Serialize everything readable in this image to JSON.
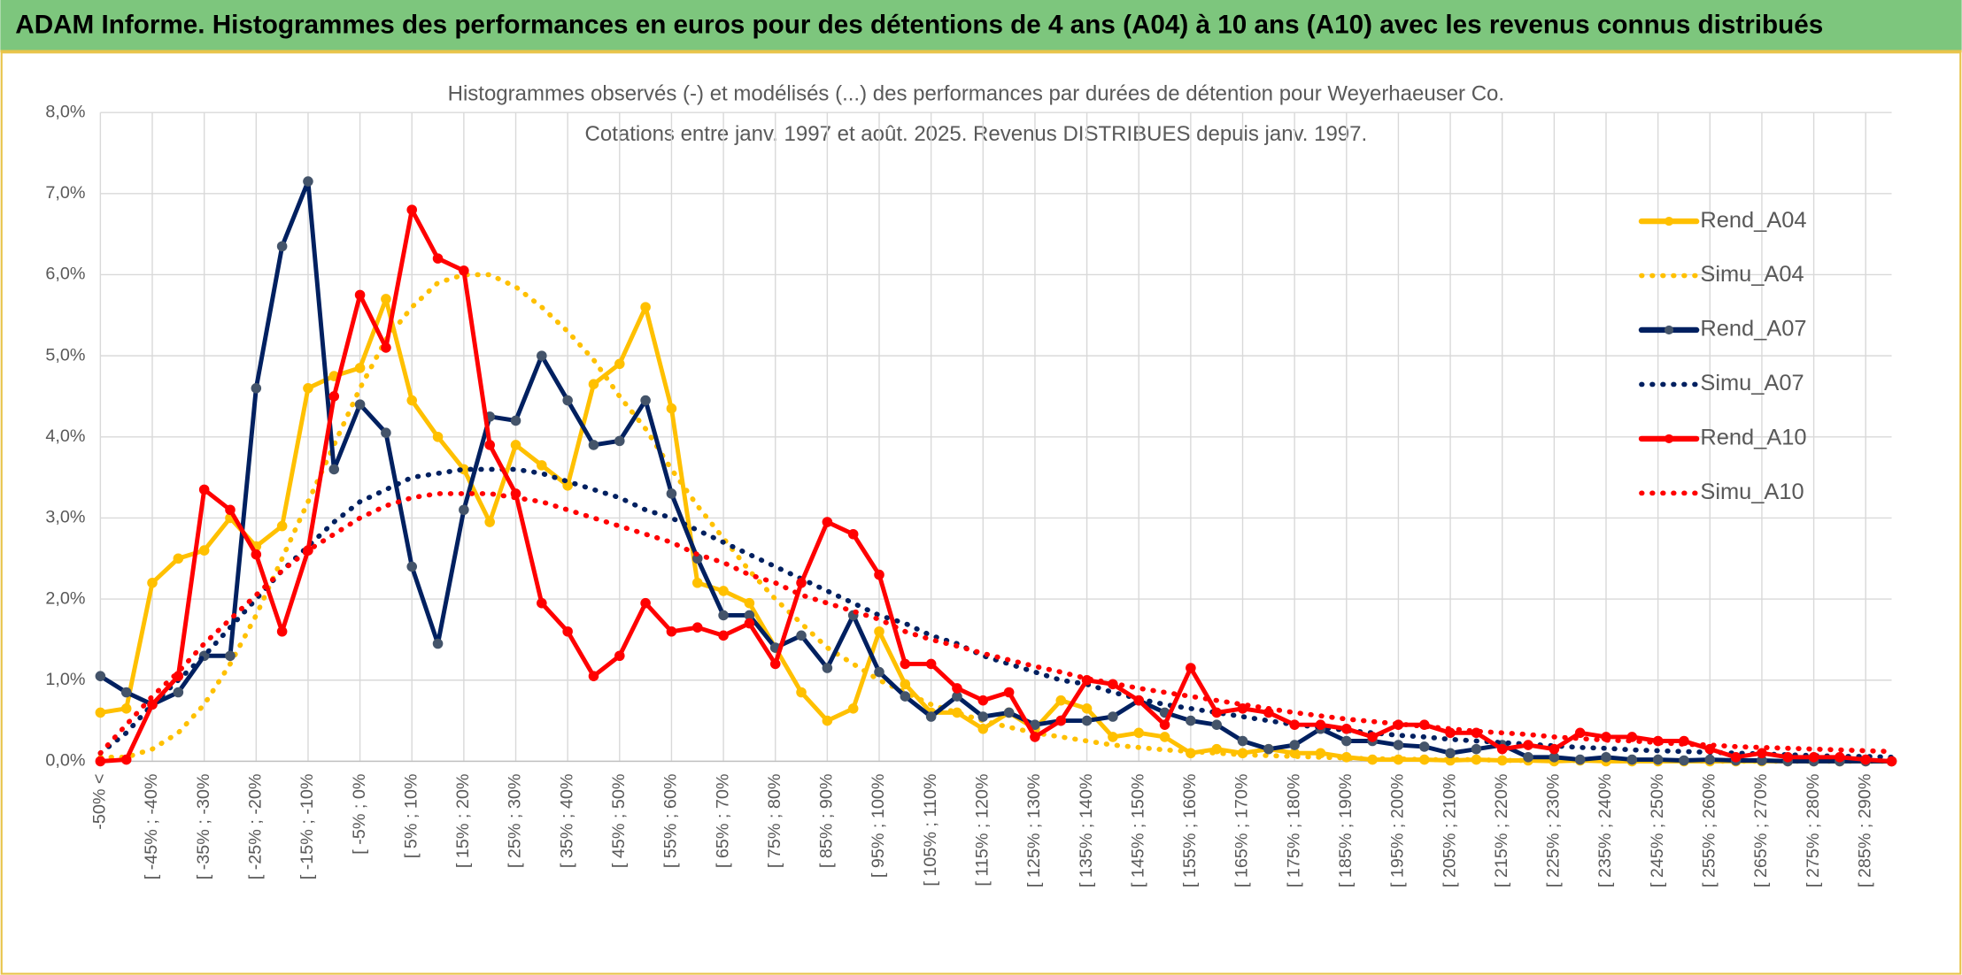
{
  "header": {
    "title": "ADAM Informe. Histogrammes des performances en euros pour des détentions de 4 ans (A04) à 10 ans (A10) avec les revenus connus distribués"
  },
  "chart_data": {
    "type": "line",
    "title": "Histogrammes observés (-) et modélisés (...) des performances par durées de détention pour Weyerhaeuser Co.",
    "subtitle": "Cotations entre janv. 1997 et août. 2025. Revenus DISTRIBUES depuis janv. 1997.",
    "categories": [
      "-50% <",
      null,
      "[ -45% ; -40%",
      null,
      "[ -35% ; -30%",
      null,
      "[ -25% ; -20%",
      null,
      "[ -15% ; -10%",
      null,
      "[ -5% ; 0%",
      null,
      "[ 5% ; 10%",
      null,
      "[ 15% ; 20%",
      null,
      "[ 25% ; 30%",
      null,
      "[ 35% ; 40%",
      null,
      "[ 45% ; 50%",
      null,
      "[ 55% ; 60%",
      null,
      "[ 65% ; 70%",
      null,
      "[ 75% ; 80%",
      null,
      "[ 85% ; 90%",
      null,
      "[ 95% ; 100%",
      null,
      "[ 105% ; 110%",
      null,
      "[ 115% ; 120%",
      null,
      "[ 125% ; 130%",
      null,
      "[ 135% ; 140%",
      null,
      "[ 145% ; 150%",
      null,
      "[ 155% ; 160%",
      null,
      "[ 165% ; 170%",
      null,
      "[ 175% ; 180%",
      null,
      "[ 185% ; 190%",
      null,
      "[ 195% ; 200%",
      null,
      "[ 205% ; 210%",
      null,
      "[ 215% ; 220%",
      null,
      "[ 225% ; 230%",
      null,
      "[ 235% ; 240%",
      null,
      "[ 245% ; 250%",
      null,
      "[ 255% ; 260%",
      null,
      "[ 265% ; 270%",
      null,
      "[ 275% ; 280%",
      null,
      "[ 285% ; 290%",
      null
    ],
    "ylim": [
      0,
      8
    ],
    "yticks": [
      {
        "value": 0,
        "label": "0,0%"
      },
      {
        "value": 1,
        "label": "1,0%"
      },
      {
        "value": 2,
        "label": "2,0%"
      },
      {
        "value": 3,
        "label": "3,0%"
      },
      {
        "value": 4,
        "label": "4,0%"
      },
      {
        "value": 5,
        "label": "5,0%"
      },
      {
        "value": 6,
        "label": "6,0%"
      },
      {
        "value": 7,
        "label": "7,0%"
      },
      {
        "value": 8,
        "label": "8,0%"
      }
    ],
    "grid": true,
    "legend": "right",
    "series": [
      {
        "name": "Rend_A04",
        "color": "#ffc000",
        "style": "solid",
        "marker": "#ffc000",
        "values": [
          0.6,
          0.65,
          2.2,
          2.5,
          2.6,
          3.0,
          2.65,
          2.9,
          4.6,
          4.75,
          4.85,
          5.7,
          4.45,
          4.0,
          3.6,
          2.95,
          3.9,
          3.65,
          3.4,
          4.65,
          4.9,
          5.6,
          4.35,
          2.2,
          2.1,
          1.95,
          1.4,
          0.85,
          0.5,
          0.65,
          1.6,
          0.95,
          0.6,
          0.6,
          0.4,
          0.6,
          0.4,
          0.75,
          0.65,
          0.3,
          0.35,
          0.3,
          0.1,
          0.15,
          0.1,
          0.15,
          0.1,
          0.1,
          0.05,
          0.02,
          0.02,
          0.02,
          0.01,
          0.02,
          0.01,
          0.01,
          0,
          0.01,
          0,
          0,
          0,
          0,
          0,
          0,
          0,
          0,
          0,
          0,
          0,
          0
        ]
      },
      {
        "name": "Simu_A04",
        "color": "#ffc000",
        "style": "dotted",
        "values": [
          0.05,
          0.05,
          0.15,
          0.35,
          0.7,
          1.2,
          1.8,
          2.5,
          3.2,
          3.9,
          4.6,
          5.2,
          5.6,
          5.9,
          6.0,
          6.0,
          5.85,
          5.6,
          5.3,
          4.95,
          4.5,
          4.1,
          3.6,
          3.15,
          2.75,
          2.35,
          2.0,
          1.7,
          1.4,
          1.2,
          1.0,
          0.85,
          0.7,
          0.6,
          0.5,
          0.42,
          0.35,
          0.3,
          0.25,
          0.2,
          0.17,
          0.14,
          0.12,
          0.1,
          0.08,
          0.07,
          0.06,
          0.05,
          0.04,
          0.03,
          0.03,
          0.02,
          0.02,
          0.02,
          0.01,
          0.01,
          0.01,
          0.01,
          0.01,
          0.01,
          0.01,
          0.01,
          0,
          0,
          0,
          0,
          0,
          0,
          0,
          0
        ]
      },
      {
        "name": "Rend_A07",
        "color": "#002060",
        "style": "solid",
        "marker": "#44546a",
        "values": [
          1.05,
          0.85,
          0.7,
          0.85,
          1.3,
          1.3,
          4.6,
          6.35,
          7.15,
          3.6,
          4.4,
          4.05,
          2.4,
          1.45,
          3.1,
          4.25,
          4.2,
          5.0,
          4.45,
          3.9,
          3.95,
          4.45,
          3.3,
          2.5,
          1.8,
          1.8,
          1.4,
          1.55,
          1.15,
          1.8,
          1.1,
          0.8,
          0.55,
          0.8,
          0.55,
          0.6,
          0.45,
          0.5,
          0.5,
          0.55,
          0.75,
          0.6,
          0.5,
          0.45,
          0.25,
          0.15,
          0.2,
          0.4,
          0.25,
          0.25,
          0.2,
          0.18,
          0.1,
          0.15,
          0.2,
          0.05,
          0.05,
          0.02,
          0.05,
          0.02,
          0.02,
          0.01,
          0.02,
          0.01,
          0.01,
          0,
          0,
          0,
          0,
          0
        ]
      },
      {
        "name": "Simu_A07",
        "color": "#002060",
        "style": "dotted",
        "values": [
          0.1,
          0.35,
          0.7,
          1.0,
          1.3,
          1.65,
          2.0,
          2.35,
          2.65,
          2.95,
          3.2,
          3.35,
          3.5,
          3.55,
          3.6,
          3.6,
          3.6,
          3.55,
          3.45,
          3.35,
          3.25,
          3.1,
          3.0,
          2.85,
          2.7,
          2.55,
          2.4,
          2.25,
          2.1,
          1.95,
          1.8,
          1.7,
          1.55,
          1.45,
          1.3,
          1.2,
          1.1,
          1.0,
          0.95,
          0.85,
          0.77,
          0.7,
          0.65,
          0.6,
          0.55,
          0.5,
          0.45,
          0.42,
          0.38,
          0.35,
          0.32,
          0.3,
          0.27,
          0.25,
          0.23,
          0.21,
          0.19,
          0.17,
          0.16,
          0.14,
          0.13,
          0.12,
          0.11,
          0.1,
          0.09,
          0.08,
          0.07,
          0.06,
          0.06,
          0.05
        ]
      },
      {
        "name": "Rend_A10",
        "color": "#ff0000",
        "style": "solid",
        "marker": "#ff0000",
        "values": [
          0.0,
          0.02,
          0.7,
          1.05,
          3.35,
          3.1,
          2.55,
          1.6,
          2.6,
          4.5,
          5.75,
          5.1,
          6.8,
          6.2,
          6.05,
          3.9,
          3.3,
          1.95,
          1.6,
          1.05,
          1.3,
          1.95,
          1.6,
          1.65,
          1.55,
          1.7,
          1.2,
          2.2,
          2.95,
          2.8,
          2.3,
          1.2,
          1.2,
          0.9,
          0.75,
          0.85,
          0.3,
          0.5,
          1.0,
          0.95,
          0.75,
          0.45,
          1.15,
          0.6,
          0.65,
          0.6,
          0.45,
          0.45,
          0.4,
          0.3,
          0.45,
          0.45,
          0.35,
          0.35,
          0.15,
          0.2,
          0.15,
          0.35,
          0.3,
          0.3,
          0.25,
          0.25,
          0.15,
          0.05,
          0.1,
          0.05,
          0.05,
          0.05,
          0.02,
          0.0
        ]
      },
      {
        "name": "Simu_A10",
        "color": "#ff0000",
        "style": "dotted",
        "values": [
          0.1,
          0.45,
          0.8,
          1.1,
          1.45,
          1.75,
          2.05,
          2.35,
          2.6,
          2.8,
          3.0,
          3.15,
          3.25,
          3.3,
          3.3,
          3.3,
          3.25,
          3.2,
          3.1,
          3.0,
          2.9,
          2.8,
          2.7,
          2.55,
          2.45,
          2.3,
          2.2,
          2.05,
          1.95,
          1.85,
          1.75,
          1.6,
          1.5,
          1.42,
          1.33,
          1.25,
          1.17,
          1.1,
          1.02,
          0.96,
          0.9,
          0.85,
          0.8,
          0.75,
          0.7,
          0.65,
          0.6,
          0.56,
          0.52,
          0.49,
          0.46,
          0.43,
          0.4,
          0.37,
          0.35,
          0.33,
          0.3,
          0.28,
          0.26,
          0.25,
          0.23,
          0.21,
          0.2,
          0.18,
          0.17,
          0.16,
          0.15,
          0.14,
          0.13,
          0.12
        ]
      }
    ]
  }
}
